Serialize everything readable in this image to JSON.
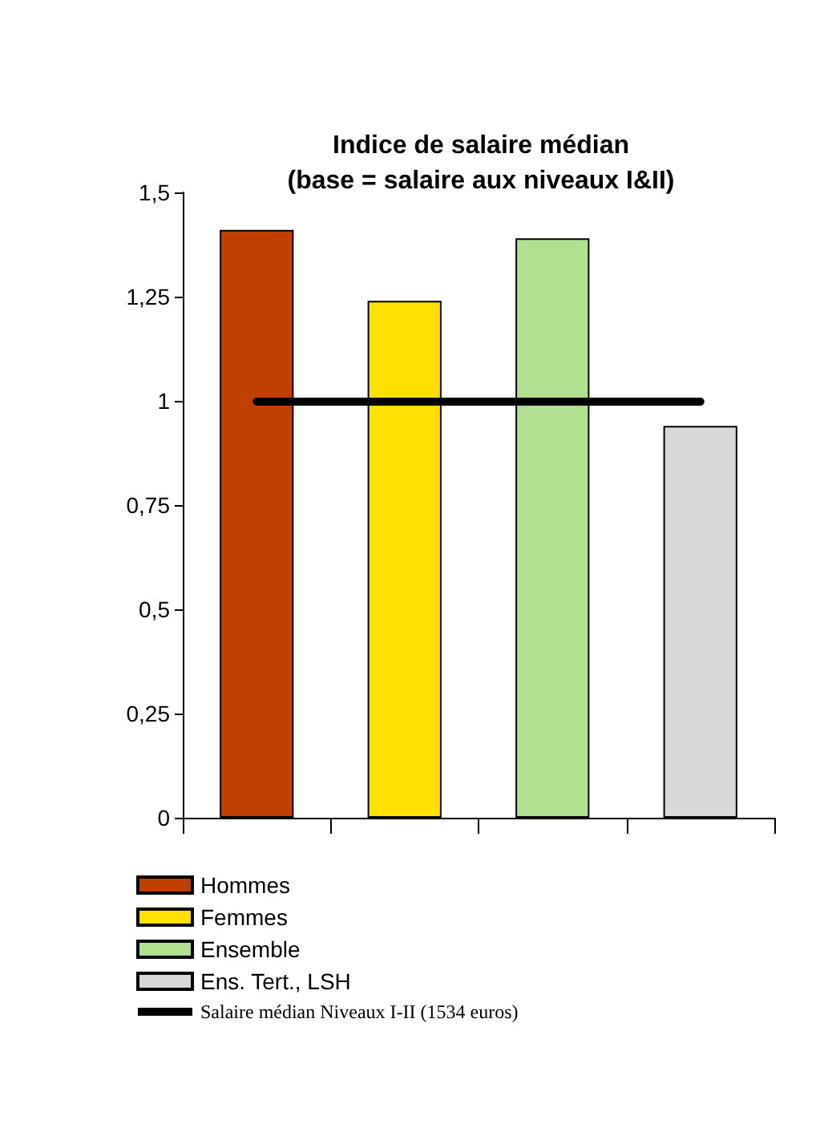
{
  "chart_data": {
    "type": "bar",
    "title": "Indice de salaire médian",
    "subtitle": "(base = salaire aux niveaux I&II)",
    "categories": [
      null,
      null,
      null,
      null
    ],
    "series": [
      {
        "name": "Hommes",
        "color": "#c04000",
        "values": [
          1.41,
          null,
          null,
          null
        ]
      },
      {
        "name": "Femmes",
        "color": "#ffe000",
        "values": [
          null,
          1.24,
          null,
          null
        ]
      },
      {
        "name": "Ensemble",
        "color": "#b0e090",
        "values": [
          null,
          null,
          1.39,
          null
        ]
      },
      {
        "name": "Ens. Tert., LSH",
        "color": "#d8d8d8",
        "values": [
          null,
          null,
          null,
          0.94
        ]
      }
    ],
    "ref_lines": [
      {
        "axis": "y",
        "value": 1,
        "label": "Salaire médian Niveaux I-II (1534 euros)",
        "color": "#000000",
        "line_style": "solid"
      }
    ],
    "ylim": [
      0,
      1.5
    ],
    "yticks": [
      0,
      {
        "value": 0.25,
        "label": "0,25"
      },
      {
        "value": 0.5,
        "label": "0,5"
      },
      {
        "value": 0.75,
        "label": "0,75"
      },
      1,
      {
        "value": 1.25,
        "label": "1,25"
      },
      {
        "value": 1.5,
        "label": "1,5"
      }
    ],
    "grid": false,
    "legend": "bottom",
    "stacked": true
  }
}
